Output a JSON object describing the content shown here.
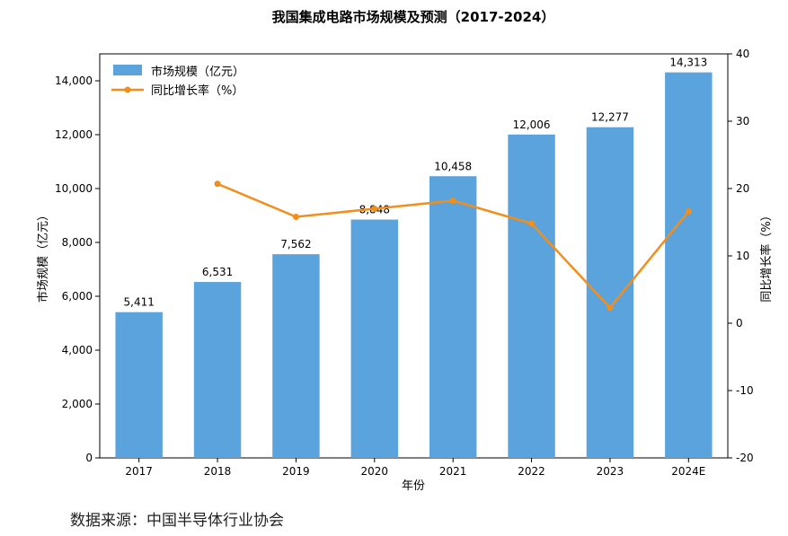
{
  "chart_data": {
    "type": "bar",
    "title": "我国集成电路市场规模及预测（2017-2024）",
    "xlabel": "年份",
    "ylabel": "市场规模（亿元）",
    "y2label": "同比增长率（%）",
    "categories": [
      "2017",
      "2018",
      "2019",
      "2020",
      "2021",
      "2022",
      "2023",
      "2024E"
    ],
    "series": [
      {
        "name": "市场规模（亿元）",
        "type": "bar",
        "axis": "left",
        "color": "#5ba3dc",
        "values": [
          5411,
          6531,
          7562,
          8848,
          10458,
          12006,
          12277,
          14313
        ],
        "labels": [
          "5,411",
          "6,531",
          "7,562",
          "8,848",
          "10,458",
          "12,006",
          "12,277",
          "14,313"
        ]
      },
      {
        "name": "同比增长率（%）",
        "type": "line",
        "axis": "right",
        "color": "#f28e1c",
        "values": [
          null,
          20.7,
          15.8,
          17.0,
          18.2,
          14.8,
          2.3,
          16.6
        ]
      }
    ],
    "ylim": [
      0,
      15000
    ],
    "yticks": [
      0,
      2000,
      4000,
      6000,
      8000,
      10000,
      12000,
      14000
    ],
    "ytick_labels": [
      "0",
      "2,000",
      "4,000",
      "6,000",
      "8,000",
      "10,000",
      "12,000",
      "14,000"
    ],
    "y2lim": [
      -20,
      40
    ],
    "y2ticks": [
      -20,
      -10,
      0,
      10,
      20,
      30,
      40
    ],
    "y2tick_labels": [
      "-20",
      "-10",
      "0",
      "10",
      "20",
      "30",
      "40"
    ],
    "legend": "top-left",
    "grid": false
  },
  "source_note": "数据来源：中国半导体行业协会"
}
